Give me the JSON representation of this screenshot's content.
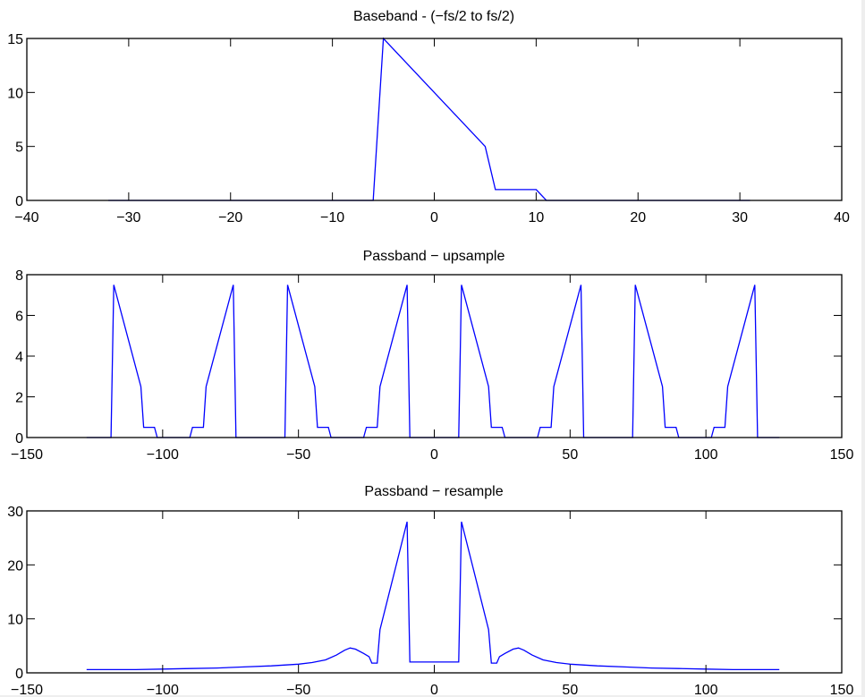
{
  "figure": {
    "background": "#ffffff",
    "line_color": "#0000ff",
    "axes_color": "#000000"
  },
  "chart_data": [
    {
      "type": "line",
      "title": "Baseband - (−fs/2 to fs/2)",
      "xlabel": "",
      "ylabel": "",
      "xlim": [
        -40,
        40
      ],
      "ylim": [
        0,
        15
      ],
      "xticks": [
        -40,
        -30,
        -20,
        -10,
        0,
        10,
        20,
        30,
        40
      ],
      "xtick_labels": [
        "−40",
        "−30",
        "−20",
        "−10",
        "0",
        "10",
        "20",
        "30",
        "40"
      ],
      "yticks": [
        0,
        5,
        10,
        15
      ],
      "ytick_labels": [
        "0",
        "5",
        "10",
        "15"
      ],
      "grid": false,
      "legend": null,
      "series": [
        {
          "name": "baseband",
          "color": "#0000ff",
          "x": [
            -32,
            -6,
            -5,
            5,
            6,
            10,
            11,
            31
          ],
          "y": [
            0,
            0,
            15,
            5,
            1,
            1,
            0,
            0
          ]
        }
      ]
    },
    {
      "type": "line",
      "title": "Passband − upsample",
      "xlabel": "",
      "ylabel": "",
      "xlim": [
        -150,
        150
      ],
      "ylim": [
        0,
        8
      ],
      "xticks": [
        -150,
        -100,
        -50,
        0,
        50,
        100,
        150
      ],
      "xtick_labels": [
        "−150",
        "−100",
        "−50",
        "0",
        "50",
        "100",
        "150"
      ],
      "yticks": [
        0,
        2,
        4,
        6,
        8
      ],
      "ytick_labels": [
        "0",
        "2",
        "4",
        "6",
        "8"
      ],
      "grid": false,
      "legend": null,
      "series": [
        {
          "name": "upsample",
          "color": "#0000ff",
          "x": [
            -128,
            -119,
            -118,
            -108,
            -107,
            -103,
            -102,
            -90,
            -89,
            -85,
            -84,
            -74,
            -73,
            -55,
            -54,
            -44,
            -43,
            -39,
            -38,
            -26,
            -25,
            -21,
            -20,
            -10,
            -9,
            9,
            10,
            20,
            21,
            25,
            26,
            38,
            39,
            43,
            44,
            54,
            55,
            73,
            74,
            84,
            85,
            89,
            90,
            102,
            103,
            107,
            108,
            118,
            119,
            127
          ],
          "y": [
            0,
            0,
            7.5,
            2.5,
            0.5,
            0.5,
            0,
            0,
            0.5,
            0.5,
            2.5,
            7.5,
            0,
            0,
            7.5,
            2.5,
            0.5,
            0.5,
            0,
            0,
            0.5,
            0.5,
            2.5,
            7.5,
            0,
            0,
            7.5,
            2.5,
            0.5,
            0.5,
            0,
            0,
            0.5,
            0.5,
            2.5,
            7.5,
            0,
            0,
            7.5,
            2.5,
            0.5,
            0.5,
            0,
            0,
            0.5,
            0.5,
            2.5,
            7.5,
            0,
            0
          ]
        }
      ]
    },
    {
      "type": "line",
      "title": "Passband − resample",
      "xlabel": "",
      "ylabel": "",
      "xlim": [
        -150,
        150
      ],
      "ylim": [
        0,
        30
      ],
      "xticks": [
        -150,
        -100,
        -50,
        0,
        50,
        100,
        150
      ],
      "xtick_labels": [
        "−150",
        "−100",
        "−50",
        "0",
        "50",
        "100",
        "150"
      ],
      "yticks": [
        0,
        10,
        20,
        30
      ],
      "ytick_labels": [
        "0",
        "10",
        "20",
        "30"
      ],
      "grid": false,
      "legend": null,
      "series": [
        {
          "name": "resample",
          "color": "#0000ff",
          "x": [
            -128,
            -110,
            -100,
            -90,
            -80,
            -70,
            -60,
            -50,
            -45,
            -40,
            -36,
            -33,
            -31,
            -29,
            -26,
            -24,
            -23,
            -21,
            -20,
            -10,
            -9,
            9,
            10,
            20,
            21,
            23,
            24,
            26,
            29,
            31,
            33,
            36,
            40,
            45,
            50,
            60,
            70,
            80,
            90,
            100,
            110,
            127
          ],
          "y": [
            0.6,
            0.6,
            0.7,
            0.8,
            0.9,
            1.1,
            1.3,
            1.6,
            1.9,
            2.4,
            3.3,
            4.2,
            4.6,
            4.4,
            3.6,
            3.0,
            1.8,
            1.8,
            8.0,
            28.0,
            2.0,
            2.0,
            28.0,
            8.0,
            1.8,
            1.8,
            3.0,
            3.6,
            4.4,
            4.6,
            4.2,
            3.3,
            2.4,
            1.9,
            1.6,
            1.3,
            1.1,
            0.9,
            0.8,
            0.7,
            0.6,
            0.6
          ]
        }
      ]
    }
  ]
}
